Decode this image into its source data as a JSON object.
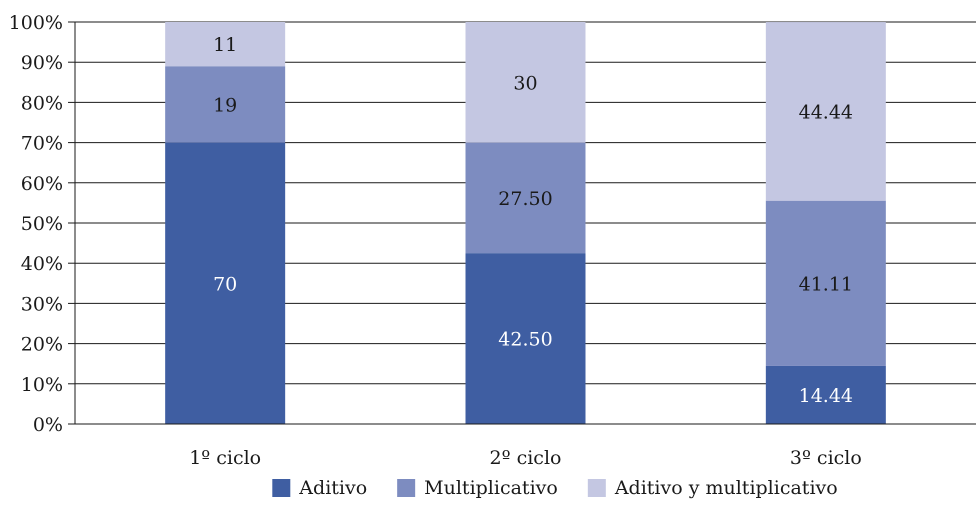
{
  "chart_data": {
    "type": "bar",
    "stacked": true,
    "categories": [
      "1º ciclo",
      "2º ciclo",
      "3º ciclo"
    ],
    "series": [
      {
        "name": "Aditivo",
        "values": [
          70,
          42.5,
          14.44
        ],
        "labels": [
          "70",
          "42.50",
          "14.44"
        ],
        "color": "#3f5ea2",
        "label_color": "#ffffff"
      },
      {
        "name": "Multiplicativo",
        "values": [
          19,
          27.5,
          41.11
        ],
        "labels": [
          "19",
          "27.50",
          "41.11"
        ],
        "color": "#7d8cc0",
        "label_color": "#1a1a1a"
      },
      {
        "name": "Aditivo y multiplicativo",
        "values": [
          11,
          30,
          44.44
        ],
        "labels": [
          "11",
          "30",
          "44.44"
        ],
        "color": "#c4c7e2",
        "label_color": "#1a1a1a"
      }
    ],
    "y_ticks": [
      "0%",
      "10%",
      "20%",
      "30%",
      "40%",
      "50%",
      "60%",
      "70%",
      "80%",
      "90%",
      "100%"
    ],
    "ylim": [
      0,
      100
    ],
    "grid": true,
    "legend": "bottom",
    "title": "",
    "xlabel": "",
    "ylabel": ""
  }
}
